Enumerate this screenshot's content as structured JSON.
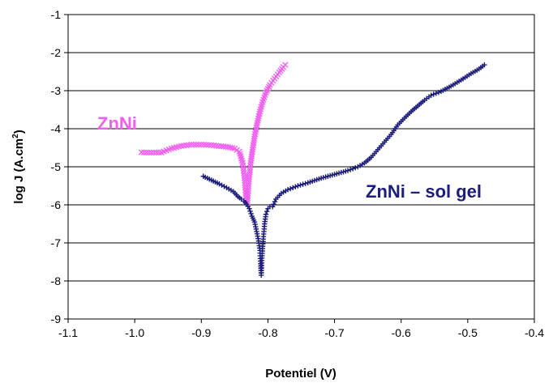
{
  "chart_data": {
    "type": "line",
    "title": "",
    "xlabel": "Potentiel (V)",
    "ylabel": "log J (A.cm",
    "ylabel_sup": "2",
    "ylabel_close": ")",
    "xlim": [
      -1.1,
      -0.4
    ],
    "ylim": [
      -9,
      -1
    ],
    "x_ticks": [
      -1.1,
      -1.0,
      -0.9,
      -0.8,
      -0.7,
      -0.6,
      -0.5,
      -0.4
    ],
    "x_tick_labels": [
      "-1.1",
      "-1.0",
      "-0.9",
      "-0.8",
      "-0.7",
      "-0.6",
      "-0.5",
      "-0.4"
    ],
    "y_ticks": [
      -9,
      -8,
      -7,
      -6,
      -5,
      -4,
      -3,
      -2,
      -1
    ],
    "y_tick_labels": [
      "-9",
      "-8",
      "-7",
      "-6",
      "-5",
      "-4",
      "-3",
      "-2",
      "-1"
    ],
    "grid": "horizontal",
    "series": [
      {
        "name": "ZnNi",
        "color": "#f060f0",
        "marker": "x",
        "label_font": "serif-bold",
        "points": [
          [
            -0.99,
            -4.62
          ],
          [
            -0.975,
            -4.63
          ],
          [
            -0.96,
            -4.62
          ],
          [
            -0.945,
            -4.52
          ],
          [
            -0.93,
            -4.45
          ],
          [
            -0.915,
            -4.42
          ],
          [
            -0.9,
            -4.42
          ],
          [
            -0.885,
            -4.43
          ],
          [
            -0.87,
            -4.46
          ],
          [
            -0.86,
            -4.48
          ],
          [
            -0.85,
            -4.52
          ],
          [
            -0.843,
            -4.6
          ],
          [
            -0.838,
            -4.9
          ],
          [
            -0.835,
            -5.3
          ],
          [
            -0.833,
            -5.8
          ],
          [
            -0.831,
            -5.95
          ],
          [
            -0.829,
            -5.45
          ],
          [
            -0.826,
            -4.9
          ],
          [
            -0.823,
            -4.55
          ],
          [
            -0.82,
            -4.2
          ],
          [
            -0.816,
            -3.85
          ],
          [
            -0.812,
            -3.55
          ],
          [
            -0.808,
            -3.3
          ],
          [
            -0.803,
            -3.05
          ],
          [
            -0.797,
            -2.85
          ],
          [
            -0.79,
            -2.68
          ],
          [
            -0.783,
            -2.52
          ],
          [
            -0.777,
            -2.38
          ],
          [
            -0.774,
            -2.32
          ]
        ]
      },
      {
        "name": "ZnNi – sol gel",
        "color": "#1c1c7c",
        "marker": "plus",
        "label_font": "serif-bold",
        "points": [
          [
            -0.897,
            -5.25
          ],
          [
            -0.885,
            -5.35
          ],
          [
            -0.873,
            -5.45
          ],
          [
            -0.862,
            -5.55
          ],
          [
            -0.852,
            -5.65
          ],
          [
            -0.845,
            -5.78
          ],
          [
            -0.84,
            -5.85
          ],
          [
            -0.836,
            -5.9
          ],
          [
            -0.832,
            -5.98
          ],
          [
            -0.828,
            -6.1
          ],
          [
            -0.824,
            -6.3
          ],
          [
            -0.82,
            -6.45
          ],
          [
            -0.817,
            -6.7
          ],
          [
            -0.814,
            -6.95
          ],
          [
            -0.812,
            -7.2
          ],
          [
            -0.811,
            -7.55
          ],
          [
            -0.81,
            -7.85
          ],
          [
            -0.809,
            -7.4
          ],
          [
            -0.807,
            -6.9
          ],
          [
            -0.805,
            -6.5
          ],
          [
            -0.803,
            -6.25
          ],
          [
            -0.8,
            -6.1
          ],
          [
            -0.797,
            -6.05
          ],
          [
            -0.793,
            -6.05
          ],
          [
            -0.788,
            -5.85
          ],
          [
            -0.78,
            -5.7
          ],
          [
            -0.77,
            -5.6
          ],
          [
            -0.755,
            -5.5
          ],
          [
            -0.74,
            -5.42
          ],
          [
            -0.72,
            -5.3
          ],
          [
            -0.7,
            -5.2
          ],
          [
            -0.68,
            -5.1
          ],
          [
            -0.665,
            -5.0
          ],
          [
            -0.655,
            -4.9
          ],
          [
            -0.645,
            -4.75
          ],
          [
            -0.635,
            -4.55
          ],
          [
            -0.625,
            -4.35
          ],
          [
            -0.615,
            -4.15
          ],
          [
            -0.605,
            -3.9
          ],
          [
            -0.595,
            -3.72
          ],
          [
            -0.585,
            -3.55
          ],
          [
            -0.575,
            -3.4
          ],
          [
            -0.565,
            -3.25
          ],
          [
            -0.555,
            -3.12
          ],
          [
            -0.54,
            -3.02
          ],
          [
            -0.525,
            -2.88
          ],
          [
            -0.51,
            -2.72
          ],
          [
            -0.495,
            -2.55
          ],
          [
            -0.483,
            -2.43
          ],
          [
            -0.475,
            -2.32
          ]
        ]
      }
    ]
  }
}
